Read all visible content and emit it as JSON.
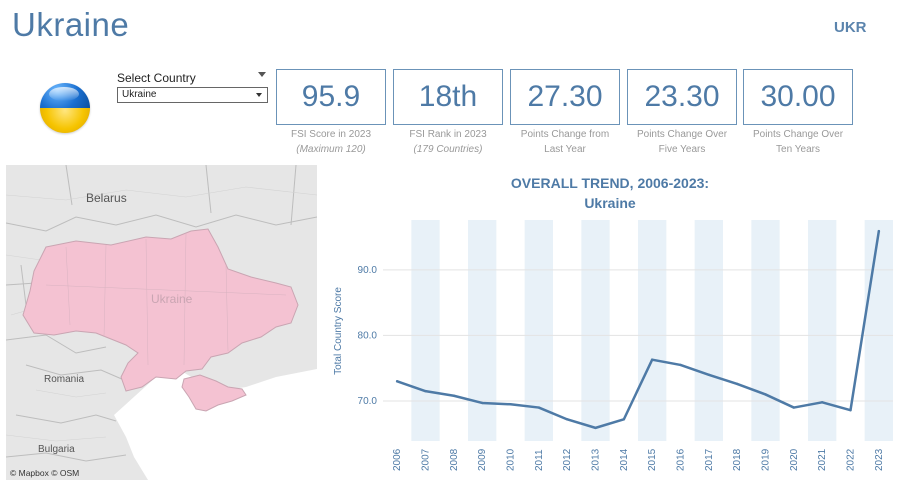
{
  "header": {
    "country": "Ukraine",
    "code": "UKR"
  },
  "selector": {
    "label": "Select Country",
    "value": "Ukraine"
  },
  "kpis": [
    {
      "value": "95.9",
      "caption1": "FSI Score in 2023",
      "caption2": "(Maximum 120)"
    },
    {
      "value": "18th",
      "caption1": "FSI Rank in 2023",
      "caption2": "(179 Countries)"
    },
    {
      "value": "27.30",
      "caption1": "Points Change from",
      "caption2": "Last Year"
    },
    {
      "value": "23.30",
      "caption1": "Points Change Over",
      "caption2": "Five Years"
    },
    {
      "value": "30.00",
      "caption1": "Points Change Over",
      "caption2": "Ten Years"
    }
  ],
  "map": {
    "labels": {
      "belarus": "Belarus",
      "ukraine": "Ukraine",
      "romania": "Romania",
      "bulgaria": "Bulgaria"
    },
    "credit": "© Mapbox  © OSM",
    "highlight_color": "#f4c2d2"
  },
  "chart_data": {
    "type": "line",
    "title": "OVERALL TREND, 2006-2023:",
    "subtitle": "Ukraine",
    "ylabel": "Total Country Score",
    "xlabel": "",
    "x": [
      "2006",
      "2007",
      "2008",
      "2009",
      "2010",
      "2011",
      "2012",
      "2013",
      "2014",
      "2015",
      "2016",
      "2017",
      "2018",
      "2019",
      "2020",
      "2021",
      "2022",
      "2023"
    ],
    "values": [
      73.0,
      71.5,
      70.8,
      69.7,
      69.5,
      69.0,
      67.2,
      65.9,
      67.2,
      76.3,
      75.5,
      74.0,
      72.6,
      71.0,
      69.0,
      69.8,
      68.6,
      95.9
    ],
    "yticks": [
      "70.0",
      "80.0",
      "90.0"
    ],
    "ylim": [
      63.9,
      97.6
    ],
    "line_color": "#4e7aa6",
    "band_color": "#e8f1f8",
    "grid": true
  }
}
